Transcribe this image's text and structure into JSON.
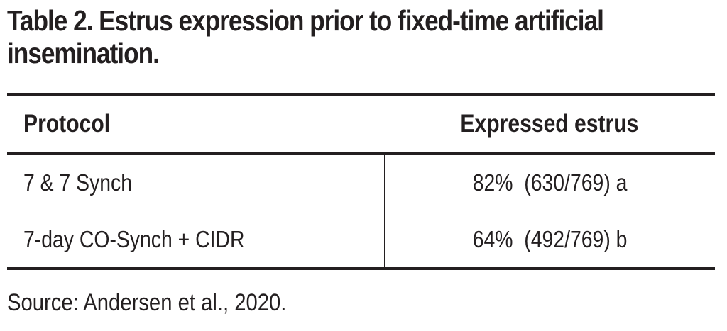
{
  "title": {
    "line1": "Table 2. Estrus expression prior to fixed-time artificial",
    "line2": "insemination."
  },
  "table": {
    "headers": [
      "Protocol",
      "Expressed estrus"
    ],
    "rows": [
      [
        "7 & 7 Synch",
        "82%  (630/769) a"
      ],
      [
        "7-day CO-Synch + CIDR",
        "64%  (492/769) b"
      ]
    ]
  },
  "source": "Source: Andersen et al., 2020."
}
